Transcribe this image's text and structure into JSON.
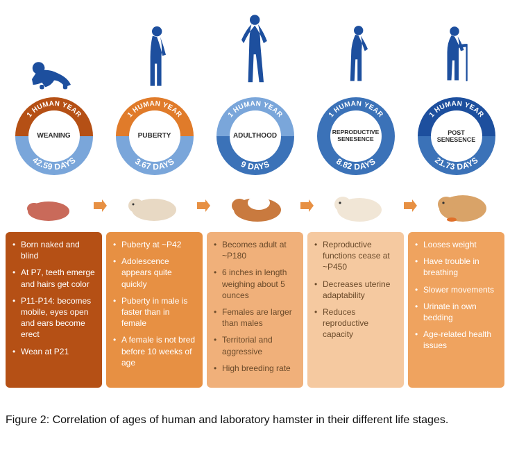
{
  "palette": {
    "human_blue": "#1d4f9e",
    "ring_orange_dark": "#b55015",
    "ring_orange_mid": "#e07b2a",
    "ring_blue_light": "#7aa6da",
    "ring_blue_mid": "#3b72b8",
    "ring_blue_dark": "#1d4f9e"
  },
  "stages": [
    {
      "ring_top_color": "#b55015",
      "ring_bottom_color": "#7aa6da",
      "top_label": "1 HUMAN YEAR",
      "center_label": "WEANING",
      "bottom_label": "42.59 DAYS",
      "box_bg": "#b55015",
      "bullets": [
        "Born naked and blind",
        "At P7, teeth emerge and hairs get color",
        "P11-P14: becomes mobile, eyes open and ears become erect",
        "Wean at P21"
      ]
    },
    {
      "ring_top_color": "#e07b2a",
      "ring_bottom_color": "#7aa6da",
      "top_label": "1 HUMAN YEAR",
      "center_label": "PUBERTY",
      "bottom_label": "3.67 DAYS",
      "box_bg": "#e79043",
      "bullets": [
        "Puberty at ~P42",
        "Adolescence appears quite quickly",
        "Puberty in male is faster than in female",
        "A female is not bred before 10 weeks of age"
      ]
    },
    {
      "ring_top_color": "#7aa6da",
      "ring_bottom_color": "#3b72b8",
      "top_label": "1 HUMAN YEAR",
      "center_label": "ADULTHOOD",
      "bottom_label": "9 DAYS",
      "box_bg": "#f0b07a",
      "bullets": [
        "Becomes adult at ~P180",
        "6 inches in length weighing about 5 ounces",
        "Females are larger than males",
        "Territorial and aggressive",
        "High breeding rate"
      ]
    },
    {
      "ring_top_color": "#3b72b8",
      "ring_bottom_color": "#3b72b8",
      "top_label": "1 HUMAN YEAR",
      "center_label": "REPRODUCTIVE SENESENCE",
      "bottom_label": "8.82 DAYS",
      "box_bg": "#f5c9a0",
      "bullets": [
        "Reproductive functions cease at ~P450",
        "Decreases uterine adaptability",
        "Reduces reproductive capacity"
      ]
    },
    {
      "ring_top_color": "#1d4f9e",
      "ring_bottom_color": "#3b72b8",
      "top_label": "1 HUMAN YEAR",
      "center_label": "POST SENESENCE",
      "bottom_label": "21.73 DAYS",
      "box_bg": "#efa35f",
      "bullets": [
        "Looses weight",
        "Have trouble in breathing",
        "Slower movements",
        "Urinate in own bedding",
        "Age-related health issues"
      ]
    }
  ],
  "dark_text_cols": [
    2,
    3
  ],
  "arrow_color": "#e79043",
  "caption_prefix": "Figure 2: ",
  "caption_text": "Correlation of ages of human and laboratory hamster in their different life stages."
}
